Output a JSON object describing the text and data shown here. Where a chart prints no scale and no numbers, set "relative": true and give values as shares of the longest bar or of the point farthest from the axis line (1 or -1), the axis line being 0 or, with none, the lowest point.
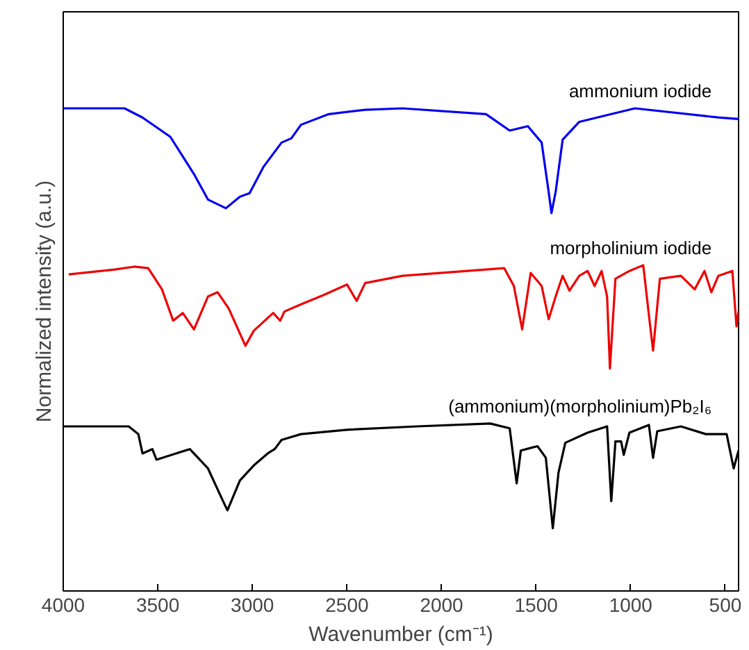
{
  "chart_data": {
    "type": "line",
    "relative": true,
    "xlabel": "Wavenumber (cm⁻¹)",
    "ylabel": "Normalized intensity (a.u.)",
    "xlim": [
      4000,
      430
    ],
    "xticks": [
      4000,
      3500,
      3000,
      2500,
      2000,
      1500,
      1000,
      500
    ],
    "grid": false,
    "legend": false,
    "series": [
      {
        "name": "ammonium iodide",
        "color": "#0000ee",
        "x": [
          4000,
          3676,
          3581,
          3434,
          3309,
          3235,
          3140,
          3066,
          3015,
          2941,
          2846,
          2794,
          2743,
          2596,
          2404,
          2206,
          1765,
          1640,
          1544,
          1471,
          1434,
          1419,
          1397,
          1360,
          1272,
          978,
          537,
          430
        ],
        "values": [
          1.0,
          1.0,
          0.981,
          0.941,
          0.864,
          0.811,
          0.793,
          0.817,
          0.824,
          0.879,
          0.929,
          0.938,
          0.966,
          0.988,
          0.997,
          1.0,
          0.988,
          0.954,
          0.963,
          0.929,
          0.827,
          0.783,
          0.827,
          0.935,
          0.972,
          1.0,
          0.981,
          0.978
        ]
      },
      {
        "name": "morpholinium iodide",
        "color": "#ee0000",
        "x": [
          3971,
          3728,
          3625,
          3551,
          3478,
          3419,
          3368,
          3309,
          3235,
          3184,
          3125,
          3037,
          2993,
          2890,
          2853,
          2831,
          2743,
          2625,
          2500,
          2449,
          2404,
          2206,
          1669,
          1618,
          1574,
          1529,
          1471,
          1434,
          1397,
          1360,
          1324,
          1272,
          1228,
          1191,
          1154,
          1125,
          1110,
          1081,
          1007,
          934,
          897,
          882,
          846,
          735,
          662,
          610,
          574,
          537,
          463,
          441,
          430
        ],
        "values": [
          0.656,
          0.666,
          0.672,
          0.669,
          0.625,
          0.56,
          0.576,
          0.542,
          0.61,
          0.619,
          0.585,
          0.508,
          0.539,
          0.576,
          0.56,
          0.579,
          0.594,
          0.613,
          0.635,
          0.601,
          0.638,
          0.653,
          0.669,
          0.632,
          0.542,
          0.659,
          0.632,
          0.563,
          0.61,
          0.653,
          0.622,
          0.653,
          0.663,
          0.632,
          0.663,
          0.61,
          0.461,
          0.647,
          0.663,
          0.675,
          0.548,
          0.498,
          0.647,
          0.653,
          0.625,
          0.663,
          0.619,
          0.653,
          0.663,
          0.548,
          0.579
        ]
      },
      {
        "name": "(ammonium)(morpholinium)Pb₂I₆",
        "color": "#000000",
        "x": [
          4000,
          3654,
          3603,
          3581,
          3529,
          3507,
          3331,
          3235,
          3162,
          3132,
          3066,
          2993,
          2919,
          2882,
          2846,
          2743,
          2500,
          2132,
          1743,
          1640,
          1618,
          1603,
          1581,
          1493,
          1449,
          1412,
          1382,
          1346,
          1228,
          1125,
          1103,
          1081,
          1051,
          1037,
          1007,
          904,
          882,
          860,
          735,
          603,
          493,
          456,
          430
        ],
        "values": [
          0.341,
          0.341,
          0.325,
          0.285,
          0.294,
          0.272,
          0.294,
          0.254,
          0.192,
          0.167,
          0.229,
          0.26,
          0.285,
          0.294,
          0.313,
          0.325,
          0.334,
          0.341,
          0.347,
          0.337,
          0.269,
          0.223,
          0.291,
          0.3,
          0.276,
          0.13,
          0.245,
          0.307,
          0.328,
          0.341,
          0.186,
          0.31,
          0.31,
          0.282,
          0.328,
          0.344,
          0.276,
          0.331,
          0.341,
          0.325,
          0.325,
          0.254,
          0.291
        ]
      }
    ]
  }
}
